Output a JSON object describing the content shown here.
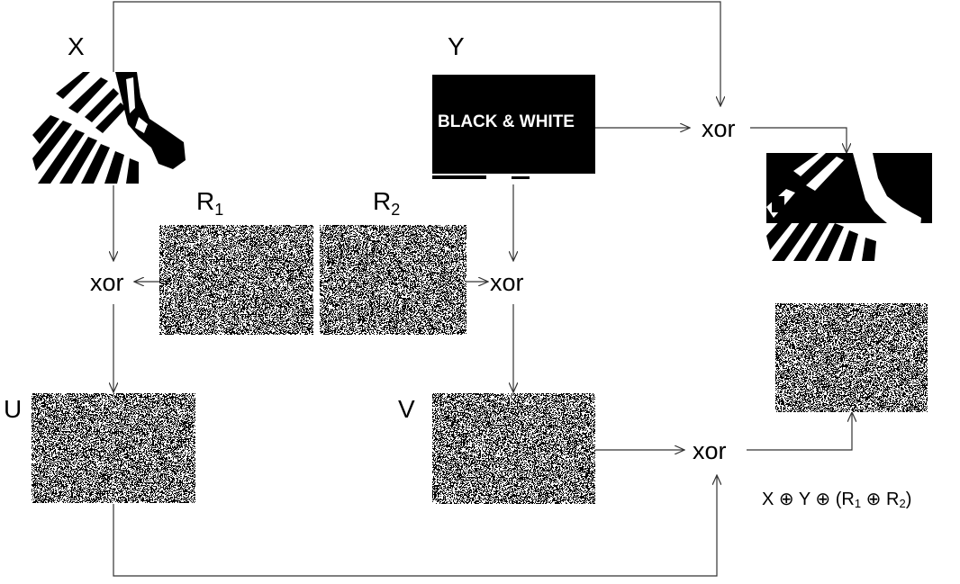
{
  "labels": {
    "x": "X",
    "y": "Y",
    "r1_main": "R",
    "r1_sub": "1",
    "r2_main": "R",
    "r2_sub": "2",
    "u": "U",
    "v": "V"
  },
  "operators": {
    "xor_top": "xor",
    "xor_left": "xor",
    "xor_mid": "xor",
    "xor_bottom": "xor"
  },
  "image_text": {
    "black_white": "BLACK & WHITE"
  },
  "formula": {
    "x": "X",
    "oplus": "⊕",
    "y": "Y",
    "open": "(",
    "r": "R",
    "sub1": "1",
    "sub2": "2",
    "close": ")"
  },
  "colors": {
    "line": "#333333",
    "ink": "#000000",
    "paper": "#ffffff"
  }
}
